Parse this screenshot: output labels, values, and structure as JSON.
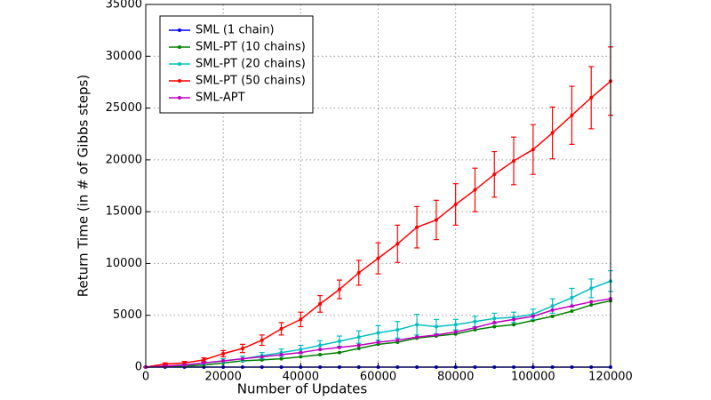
{
  "chart_data": {
    "type": "line",
    "xlabel": "Number of Updates",
    "ylabel": "Return Time (in # of Gibbs steps)",
    "x": [
      0,
      5000,
      10000,
      15000,
      20000,
      25000,
      30000,
      35000,
      40000,
      45000,
      50000,
      55000,
      60000,
      65000,
      70000,
      75000,
      80000,
      85000,
      90000,
      95000,
      100000,
      105000,
      110000,
      115000,
      120000
    ],
    "series": [
      {
        "name": "SML (1 chain)",
        "color": "#0000ff",
        "values": [
          0,
          0,
          0,
          0,
          0,
          0,
          0,
          0,
          0,
          0,
          0,
          0,
          0,
          0,
          0,
          0,
          0,
          0,
          0,
          0,
          0,
          0,
          0,
          0,
          0
        ]
      },
      {
        "name": "SML-PT (10 chains)",
        "color": "#008000",
        "values": [
          0,
          50,
          100,
          200,
          400,
          600,
          700,
          800,
          1000,
          1200,
          1400,
          1800,
          2200,
          2400,
          2800,
          3000,
          3200,
          3600,
          3900,
          4100,
          4500,
          4900,
          5400,
          6000,
          6400
        ]
      },
      {
        "name": "SML-PT (20 chains)",
        "color": "#00bfbf",
        "values": [
          0,
          100,
          200,
          400,
          600,
          800,
          1100,
          1400,
          1700,
          2100,
          2500,
          2900,
          3300,
          3600,
          4100,
          3900,
          4100,
          4400,
          4700,
          4800,
          5100,
          5900,
          6700,
          7600,
          8300
        ],
        "errors": [
          0,
          50,
          100,
          150,
          200,
          250,
          300,
          350,
          400,
          450,
          500,
          600,
          700,
          800,
          1000,
          700,
          500,
          500,
          500,
          500,
          500,
          700,
          900,
          900,
          1000
        ]
      },
      {
        "name": "SML-PT (50 chains)",
        "color": "#ff0000",
        "values": [
          0,
          300,
          400,
          700,
          1300,
          1800,
          2600,
          3700,
          4600,
          6100,
          7500,
          9100,
          10500,
          11900,
          13500,
          14200,
          15700,
          17100,
          18600,
          19900,
          21000,
          22600,
          24300,
          26000,
          27600
        ],
        "errors": [
          0,
          100,
          150,
          200,
          300,
          400,
          500,
          600,
          700,
          800,
          900,
          1200,
          1500,
          1800,
          2000,
          1900,
          2000,
          2100,
          2200,
          2300,
          2400,
          2500,
          2800,
          3000,
          3300
        ]
      },
      {
        "name": "SML-APT",
        "color": "#bf00bf",
        "values": [
          0,
          100,
          200,
          400,
          600,
          800,
          1000,
          1200,
          1400,
          1700,
          1900,
          2100,
          2400,
          2600,
          2900,
          3100,
          3400,
          3800,
          4300,
          4600,
          4900,
          5500,
          5900,
          6300,
          6600
        ]
      }
    ],
    "xlim": [
      0,
      120000
    ],
    "xticks": [
      0,
      20000,
      40000,
      60000,
      80000,
      100000,
      120000
    ],
    "ylim": [
      0,
      35000
    ],
    "yticks": [
      0,
      5000,
      10000,
      15000,
      20000,
      25000,
      30000,
      35000
    ],
    "grid": true,
    "legend": "upper left"
  }
}
